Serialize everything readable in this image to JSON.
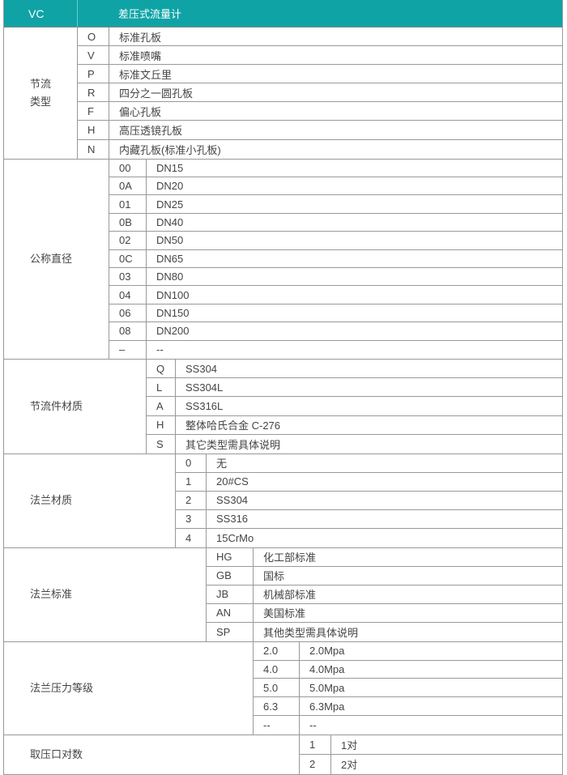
{
  "header": {
    "code": "VC",
    "title": "差压式流量计"
  },
  "header_color": "#0fa3a6",
  "sections": [
    {
      "label": [
        "节流",
        "类型"
      ],
      "rows": [
        [
          "O",
          "标准孔板"
        ],
        [
          "V",
          "标准喷嘴"
        ],
        [
          "P",
          "标准文丘里"
        ],
        [
          "R",
          "四分之一圆孔板"
        ],
        [
          "F",
          "偏心孔板"
        ],
        [
          "H",
          "高压透镜孔板"
        ],
        [
          "N",
          "内藏孔板(标准小孔板)"
        ]
      ]
    },
    {
      "label": [
        "公称直径"
      ],
      "rows": [
        [
          "00",
          "DN15"
        ],
        [
          "0A",
          "DN20"
        ],
        [
          "01",
          "DN25"
        ],
        [
          "0B",
          "DN40"
        ],
        [
          "02",
          "DN50"
        ],
        [
          "0C",
          "DN65"
        ],
        [
          "03",
          "DN80"
        ],
        [
          "04",
          "DN100"
        ],
        [
          "06",
          "DN150"
        ],
        [
          "08",
          "DN200"
        ],
        [
          "–",
          "--"
        ]
      ]
    },
    {
      "label": [
        "节流件材质"
      ],
      "rows": [
        [
          "Q",
          "SS304"
        ],
        [
          "L",
          "SS304L"
        ],
        [
          "A",
          "SS316L"
        ],
        [
          "H",
          "整体哈氏合金 C-276"
        ],
        [
          "S",
          "其它类型需具体说明"
        ]
      ]
    },
    {
      "label": [
        "法兰材质"
      ],
      "rows": [
        [
          "0",
          "无"
        ],
        [
          "1",
          "20#CS"
        ],
        [
          "2",
          "SS304"
        ],
        [
          "3",
          "SS316"
        ],
        [
          "4",
          "15CrMo"
        ]
      ]
    },
    {
      "label": [
        "法兰标准"
      ],
      "rows": [
        [
          "HG",
          "化工部标准"
        ],
        [
          "GB",
          "国标"
        ],
        [
          "JB",
          "机械部标准"
        ],
        [
          "AN",
          "美国标准"
        ],
        [
          "SP",
          "其他类型需具体说明"
        ]
      ]
    },
    {
      "label": [
        "法兰压力等级"
      ],
      "rows": [
        [
          "2.0",
          "2.0Mpa"
        ],
        [
          "4.0",
          "4.0Mpa"
        ],
        [
          "5.0",
          "5.0Mpa"
        ],
        [
          "6.3",
          "6.3Mpa"
        ],
        [
          "--",
          "--"
        ]
      ]
    },
    {
      "label": [
        "取压口对数"
      ],
      "rows": [
        [
          "1",
          "1对"
        ],
        [
          "2",
          "2对"
        ]
      ]
    }
  ]
}
